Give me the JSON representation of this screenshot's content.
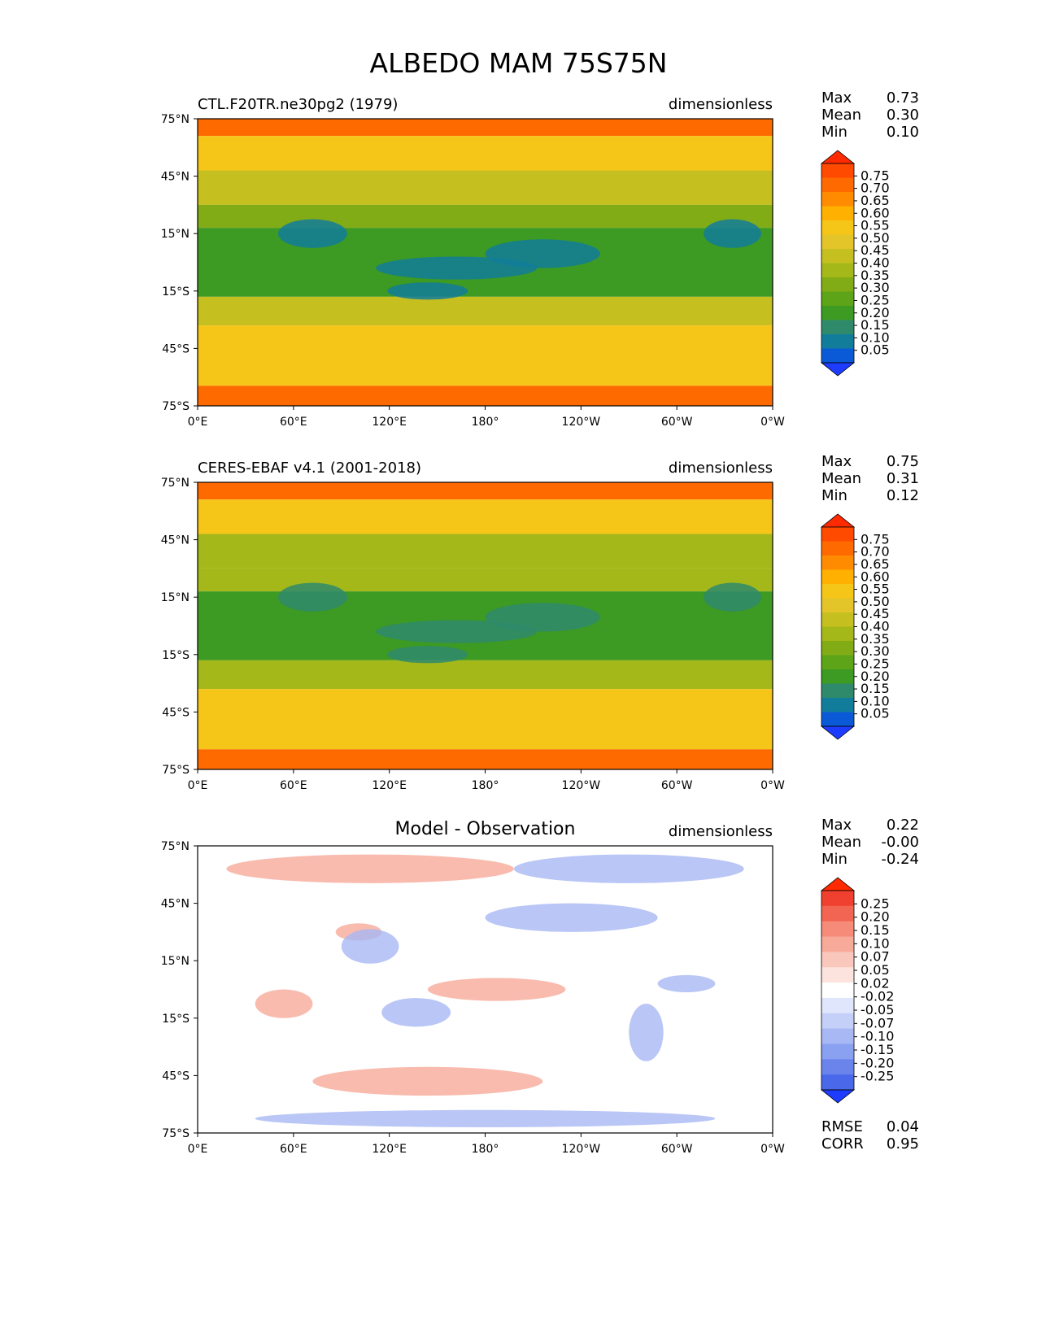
{
  "title": "ALBEDO MAM 75S75N",
  "axes": {
    "lat_labels": [
      "75°N",
      "45°N",
      "15°N",
      "15°S",
      "45°S",
      "75°S"
    ],
    "lon_labels": [
      "0°E",
      "60°E",
      "120°E",
      "180°",
      "120°W",
      "60°W",
      "0°W"
    ]
  },
  "panels": [
    {
      "left_title": "CTL.F20TR.ne30pg2 (1979)",
      "center_title": "",
      "units": "dimensionless",
      "stats": [
        {
          "name": "Max",
          "value": "0.73"
        },
        {
          "name": "Mean",
          "value": "0.30"
        },
        {
          "name": "Min",
          "value": "0.10"
        }
      ],
      "colorbar": {
        "levels": [
          "0.75",
          "0.70",
          "0.65",
          "0.60",
          "0.55",
          "0.50",
          "0.45",
          "0.40",
          "0.35",
          "0.30",
          "0.25",
          "0.20",
          "0.15",
          "0.10",
          "0.05"
        ],
        "colors": [
          "#ff2a00",
          "#ff4a00",
          "#ff6a00",
          "#ff8c00",
          "#ffb000",
          "#f5c518",
          "#e3c52a",
          "#c5bf1f",
          "#a5b81a",
          "#82ac16",
          "#5ea418",
          "#3d9a22",
          "#2f8a6c",
          "#127d9a",
          "#0a5ad8",
          "#1e3cff"
        ]
      },
      "extra_stats": []
    },
    {
      "left_title": "CERES-EBAF v4.1 (2001-2018)",
      "center_title": "",
      "units": "dimensionless",
      "stats": [
        {
          "name": "Max",
          "value": "0.75"
        },
        {
          "name": "Mean",
          "value": "0.31"
        },
        {
          "name": "Min",
          "value": "0.12"
        }
      ],
      "colorbar": {
        "levels": [
          "0.75",
          "0.70",
          "0.65",
          "0.60",
          "0.55",
          "0.50",
          "0.45",
          "0.40",
          "0.35",
          "0.30",
          "0.25",
          "0.20",
          "0.15",
          "0.10",
          "0.05"
        ],
        "colors": [
          "#ff2a00",
          "#ff4a00",
          "#ff6a00",
          "#ff8c00",
          "#ffb000",
          "#f5c518",
          "#e3c52a",
          "#c5bf1f",
          "#a5b81a",
          "#82ac16",
          "#5ea418",
          "#3d9a22",
          "#2f8a6c",
          "#127d9a",
          "#0a5ad8",
          "#1e3cff"
        ]
      },
      "extra_stats": []
    },
    {
      "left_title": "",
      "center_title": "Model - Observation",
      "units": "dimensionless",
      "stats": [
        {
          "name": "Max",
          "value": "0.22"
        },
        {
          "name": "Mean",
          "value": "-0.00"
        },
        {
          "name": "Min",
          "value": "-0.24"
        }
      ],
      "colorbar": {
        "levels": [
          "0.25",
          "0.20",
          "0.15",
          "0.10",
          "0.07",
          "0.05",
          "0.02",
          "-0.02",
          "-0.05",
          "-0.07",
          "-0.10",
          "-0.15",
          "-0.20",
          "-0.25"
        ],
        "colors": [
          "#ff2a00",
          "#f04030",
          "#f26552",
          "#f58b78",
          "#f7aa9a",
          "#fac7bc",
          "#fde3dd",
          "#ffffff",
          "#e0e6fb",
          "#c5d0f8",
          "#a8b8f4",
          "#8aa0f0",
          "#6a84ec",
          "#4a68ea",
          "#1e3cff"
        ]
      },
      "extra_stats": [
        {
          "name": "RMSE",
          "value": "0.04"
        },
        {
          "name": "CORR",
          "value": "0.95"
        }
      ]
    }
  ],
  "map_colors": {
    "panel1": {
      "polar": "#ff6a00",
      "subpolar": "#f5c518",
      "midlat": "#c5bf1f",
      "tropics": "#3d9a22",
      "deep": "#127d9a",
      "land": "#82ac16"
    },
    "panel2": {
      "polar": "#ff6a00",
      "subpolar": "#f5c518",
      "midlat": "#a5b81a",
      "tropics": "#3d9a22",
      "deep": "#2f8a6c",
      "land": "#a5b81a"
    },
    "panel3": {
      "pos": "#f7aa9a",
      "neg": "#a8b8f4",
      "neutral": "#ffffff"
    }
  }
}
